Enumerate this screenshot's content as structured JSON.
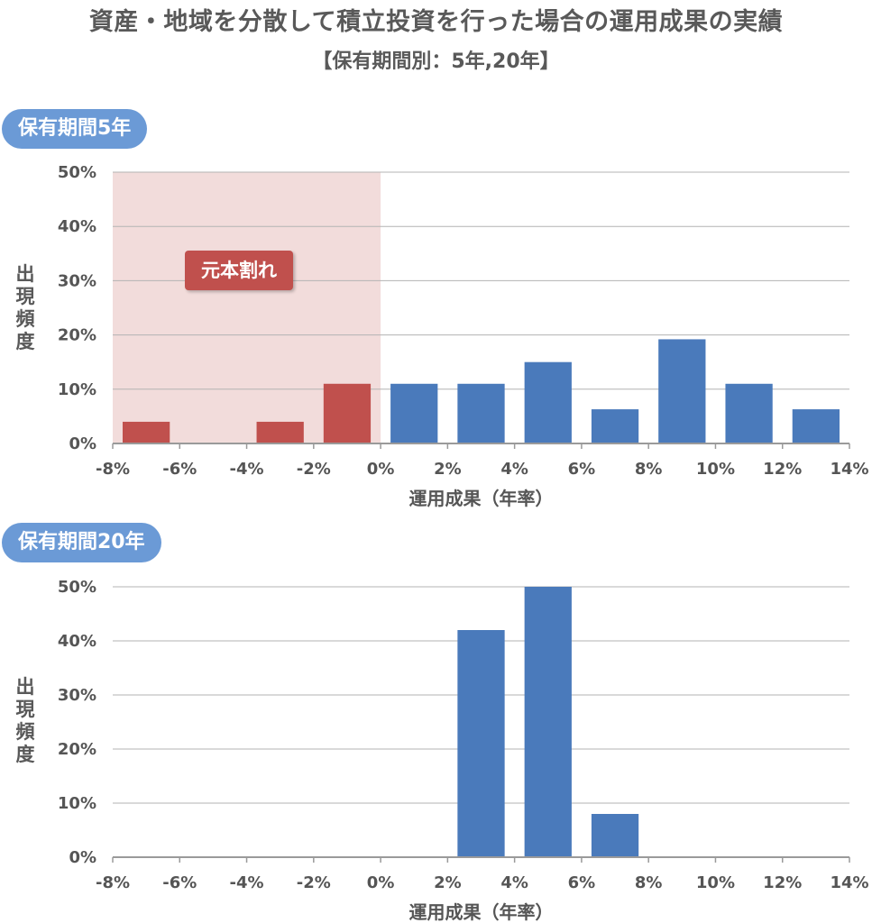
{
  "title": "資産・地域を分散して積立投資を行った場合の運用成果の実績",
  "subtitle": "【保有期間別：5年,20年】",
  "loss_label": "元本割れ",
  "colors": {
    "loss": "#c0504d",
    "gain": "#4a7abb",
    "loss_zone": "#f2dcdb",
    "label_bg": "#6b9ad6"
  },
  "chart_data": [
    {
      "type": "bar",
      "panel_label": "保有期間5年",
      "ylabel": "出現頻度",
      "xlabel": "運用成果（年率）",
      "x_ticks": [
        "-8%",
        "-6%",
        "-4%",
        "-2%",
        "0%",
        "2%",
        "4%",
        "6%",
        "8%",
        "10%",
        "12%",
        "14%"
      ],
      "y_ticks": [
        "0%",
        "10%",
        "20%",
        "30%",
        "40%",
        "50%"
      ],
      "ylim": [
        0,
        50
      ],
      "xlim": [
        -8,
        14
      ],
      "loss_zone": [
        -8,
        0
      ],
      "bins": [
        {
          "from": -8,
          "to": -6,
          "value": 4
        },
        {
          "from": -6,
          "to": -4,
          "value": 0
        },
        {
          "from": -4,
          "to": -2,
          "value": 4
        },
        {
          "from": -2,
          "to": 0,
          "value": 11
        },
        {
          "from": 0,
          "to": 2,
          "value": 11
        },
        {
          "from": 2,
          "to": 4,
          "value": 11
        },
        {
          "from": 4,
          "to": 6,
          "value": 15
        },
        {
          "from": 6,
          "to": 8,
          "value": 6.3
        },
        {
          "from": 8,
          "to": 10,
          "value": 19.2
        },
        {
          "from": 10,
          "to": 12,
          "value": 11
        },
        {
          "from": 12,
          "to": 14,
          "value": 6.3
        }
      ]
    },
    {
      "type": "bar",
      "panel_label": "保有期間20年",
      "ylabel": "出現頻度",
      "xlabel": "運用成果（年率）",
      "x_ticks": [
        "-8%",
        "-6%",
        "-4%",
        "-2%",
        "0%",
        "2%",
        "4%",
        "6%",
        "8%",
        "10%",
        "12%",
        "14%"
      ],
      "y_ticks": [
        "0%",
        "10%",
        "20%",
        "30%",
        "40%",
        "50%"
      ],
      "ylim": [
        0,
        50
      ],
      "xlim": [
        -8,
        14
      ],
      "bins": [
        {
          "from": 2,
          "to": 4,
          "value": 42
        },
        {
          "from": 4,
          "to": 6,
          "value": 50
        },
        {
          "from": 6,
          "to": 8,
          "value": 8
        }
      ]
    }
  ]
}
